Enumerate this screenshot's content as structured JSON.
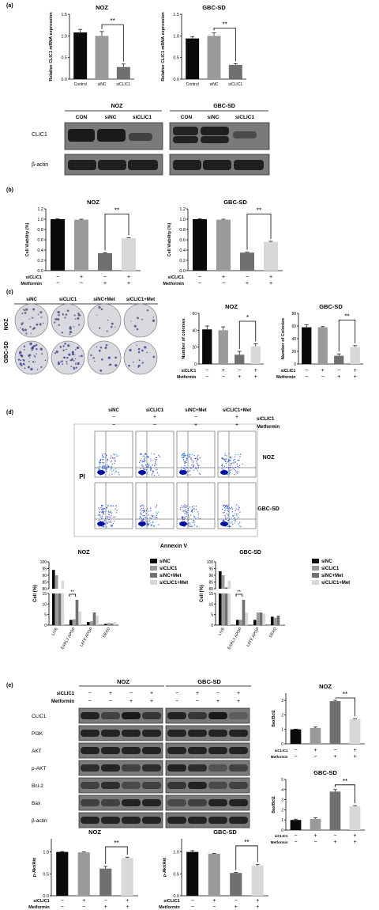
{
  "panels": {
    "a": "(a)",
    "b": "(b)",
    "c": "(c)",
    "d": "(d)",
    "e": "(e)"
  },
  "colors": {
    "black": "#0a0a0a",
    "gray": "#9a9a9a",
    "darkgray": "#707070",
    "lightgray": "#d8d8d8",
    "blot": "#1a1a1a",
    "blotbg": "#6a6a6a"
  },
  "chart_data": [
    {
      "id": "a_noz",
      "type": "bar",
      "title": "NOZ",
      "ylabel": "Relative CLIC1 mRNA expression",
      "categories": [
        "Control",
        "siNC",
        "siCLIC1"
      ],
      "values": [
        1.08,
        1.0,
        0.28
      ],
      "errors": [
        0.07,
        0.1,
        0.07
      ],
      "ylim": [
        0,
        1.5
      ],
      "yticks": [
        "0.0",
        "0.5",
        "1.0",
        "1.5"
      ],
      "sig": "**",
      "sig_pair": [
        1,
        2
      ]
    },
    {
      "id": "a_gbc",
      "type": "bar",
      "title": "GBC-SD",
      "ylabel": "Relative CLIC1 mRNA expression",
      "categories": [
        "Control",
        "siNC",
        "siCLIC1"
      ],
      "values": [
        0.94,
        1.0,
        0.33
      ],
      "errors": [
        0.04,
        0.07,
        0.03
      ],
      "ylim": [
        0,
        1.5
      ],
      "yticks": [
        "0.0",
        "0.5",
        "1.0",
        "1.5"
      ],
      "sig": "**",
      "sig_pair": [
        1,
        2
      ]
    },
    {
      "id": "b_noz",
      "type": "bar",
      "title": "NOZ",
      "ylabel": "Cell Viability (%)",
      "values": [
        1.0,
        0.99,
        0.34,
        0.63
      ],
      "errors": [
        0.01,
        0.01,
        0.01,
        0.01
      ],
      "ylim": [
        0,
        1.2
      ],
      "yticks": [
        "0.0",
        "0.2",
        "0.4",
        "0.6",
        "0.8",
        "1.0",
        "1.2"
      ],
      "sig": "**",
      "sig_pair": [
        2,
        3
      ]
    },
    {
      "id": "b_gbc",
      "type": "bar",
      "title": "GBC-SD",
      "ylabel": "Cell Viability (%)",
      "values": [
        1.0,
        0.99,
        0.35,
        0.56
      ],
      "errors": [
        0.01,
        0.01,
        0.01,
        0.01
      ],
      "ylim": [
        0,
        1.2
      ],
      "yticks": [
        "0.0",
        "0.2",
        "0.4",
        "0.6",
        "0.8",
        "1.0",
        "1.2"
      ],
      "sig": "**",
      "sig_pair": [
        2,
        3
      ]
    },
    {
      "id": "c_noz",
      "type": "bar",
      "title": "NOZ",
      "ylabel": "Number of colonies",
      "values": [
        41,
        40,
        11,
        21
      ],
      "errors": [
        4,
        4,
        4,
        3
      ],
      "ylim": [
        0,
        60
      ],
      "yticks": [
        "0",
        "20",
        "40",
        "60"
      ],
      "sig": "*",
      "sig_pair": [
        2,
        3
      ]
    },
    {
      "id": "c_gbc",
      "type": "bar",
      "title": "GBC-SD",
      "ylabel": "Number of Colonies",
      "values": [
        58,
        58,
        13,
        27
      ],
      "errors": [
        4,
        1,
        3,
        2
      ],
      "ylim": [
        0,
        80
      ],
      "yticks": [
        "0",
        "20",
        "40",
        "60",
        "80"
      ],
      "sig": "**",
      "sig_pair": [
        2,
        3
      ]
    },
    {
      "id": "d_noz",
      "type": "bar",
      "title": "NOZ",
      "ylabel": "Cell (%)",
      "categories": [
        "LIVE",
        "EARLY APOP",
        "LATE APOP",
        "DEAD"
      ],
      "series": [
        {
          "name": "siNC",
          "values": [
            94,
            2.5,
            1.5,
            0.6
          ]
        },
        {
          "name": "siCLIC1",
          "values": [
            90,
            2.8,
            1.8,
            1.0
          ]
        },
        {
          "name": "siNC+Met",
          "values": [
            80,
            12,
            6,
            0.8
          ]
        },
        {
          "name": "siCLIC1+Met",
          "values": [
            86,
            6.5,
            4.5,
            1.5
          ]
        }
      ],
      "yticks_top": [
        "80",
        "85",
        "90",
        "95",
        "100"
      ],
      "yticks_bottom": [
        "0",
        "5",
        "10",
        "15"
      ],
      "sig": "**"
    },
    {
      "id": "d_gbc",
      "type": "bar",
      "title": "GBC-SD",
      "ylabel": "Cell (%)",
      "categories": [
        "LIVE",
        "EARLY APOP",
        "LATE APOP",
        "DEAD"
      ],
      "series": [
        {
          "name": "siNC",
          "values": [
            93,
            2.5,
            2.5,
            4
          ]
        },
        {
          "name": "siCLIC1",
          "values": [
            90,
            2.5,
            6,
            3.5
          ]
        },
        {
          "name": "siNC+Met",
          "values": [
            81,
            12,
            6,
            4.5
          ]
        },
        {
          "name": "siCLIC1+Met",
          "values": [
            86,
            6,
            5.5,
            0.5
          ]
        }
      ],
      "yticks_top": [
        "80",
        "85",
        "90",
        "95",
        "100"
      ],
      "yticks_bottom": [
        "0",
        "5",
        "10",
        "15"
      ],
      "sig": "**"
    },
    {
      "id": "e_noz_bax",
      "type": "bar",
      "title": "NOZ",
      "ylabel": "Bax/Bcl2",
      "values": [
        1.0,
        1.1,
        2.95,
        1.7
      ],
      "errors": [
        0.02,
        0.06,
        0.06,
        0.04
      ],
      "ylim": [
        0,
        3.5
      ],
      "yticks": [
        "0",
        "1",
        "2",
        "3"
      ],
      "sig": "**",
      "sig_pair": [
        2,
        3
      ]
    },
    {
      "id": "e_gbc_bax",
      "type": "bar",
      "title": "GBC-SD",
      "ylabel": "Bax/Bcl2",
      "values": [
        1.0,
        1.1,
        3.8,
        2.35
      ],
      "errors": [
        0.08,
        0.1,
        0.2,
        0.07
      ],
      "ylim": [
        0,
        5
      ],
      "yticks": [
        "0",
        "1",
        "2",
        "3",
        "4",
        "5"
      ],
      "sig": "**",
      "sig_pair": [
        2,
        3
      ]
    },
    {
      "id": "e_noz_akt",
      "type": "bar",
      "title": "NOZ",
      "ylabel": "p-Akt/Akt",
      "values": [
        1.0,
        0.99,
        0.62,
        0.86
      ],
      "errors": [
        0.01,
        0.01,
        0.05,
        0.02
      ],
      "ylim": [
        0,
        1.3
      ],
      "yticks": [
        "0.0",
        "0.5",
        "1.0"
      ],
      "sig": "**",
      "sig_pair": [
        2,
        3
      ]
    },
    {
      "id": "e_gbc_akt",
      "type": "bar",
      "title": "GBC-SD",
      "ylabel": "p-Akt/Akt",
      "values": [
        1.0,
        0.96,
        0.52,
        0.69
      ],
      "errors": [
        0.03,
        0.01,
        0.01,
        0.02
      ],
      "ylim": [
        0,
        1.3
      ],
      "yticks": [
        "0.0",
        "0.5",
        "1.0"
      ],
      "sig": "**",
      "sig_pair": [
        2,
        3
      ]
    }
  ],
  "rows": {
    "siCLIC1": "siCLIC1",
    "metformin": "Metformin",
    "sig_b": [
      "−",
      "+",
      "−",
      "+"
    ],
    "met_b": [
      "−",
      "−",
      "+",
      "+"
    ]
  },
  "blot_a": {
    "noz_title": "NOZ",
    "gbc_title": "GBC-SD",
    "lanes": [
      "CON",
      "siNC",
      "siCLIC1"
    ],
    "labels": [
      "CLIC1",
      "β-actin"
    ]
  },
  "colony": {
    "cols": [
      "siNC",
      "siCLIC1",
      "siNC+Met",
      "siCLIC1+Met"
    ],
    "rows": [
      "NOZ",
      "GBC-SD"
    ]
  },
  "flow": {
    "cols": [
      "siNC",
      "siCLIC1",
      "siNC+Met",
      "siCLIC1+Met"
    ],
    "si_marks": [
      "−",
      "+",
      "−",
      "+"
    ],
    "met_marks": [
      "−",
      "−",
      "+",
      "+"
    ],
    "si_label": "siCLIC1",
    "met_label": "Metformin",
    "rows": [
      "NOZ",
      "GBC-SD"
    ],
    "y_axis": "PI",
    "x_axis": "Annexin V"
  },
  "legend_d": [
    "siNC",
    "siCLIC1",
    "siNC+Met",
    "siCLIC1+Met"
  ],
  "blot_e": {
    "noz_title": "NOZ",
    "gbc_title": "GBC-SD",
    "labels": [
      "CLIC1",
      "PI3K",
      "AKT",
      "p-AKT",
      "Bcl-2",
      "Bax",
      "β-actin"
    ],
    "si_marks": [
      "−",
      "+",
      "−",
      "+"
    ],
    "met_marks": [
      "−",
      "−",
      "+",
      "+"
    ]
  }
}
